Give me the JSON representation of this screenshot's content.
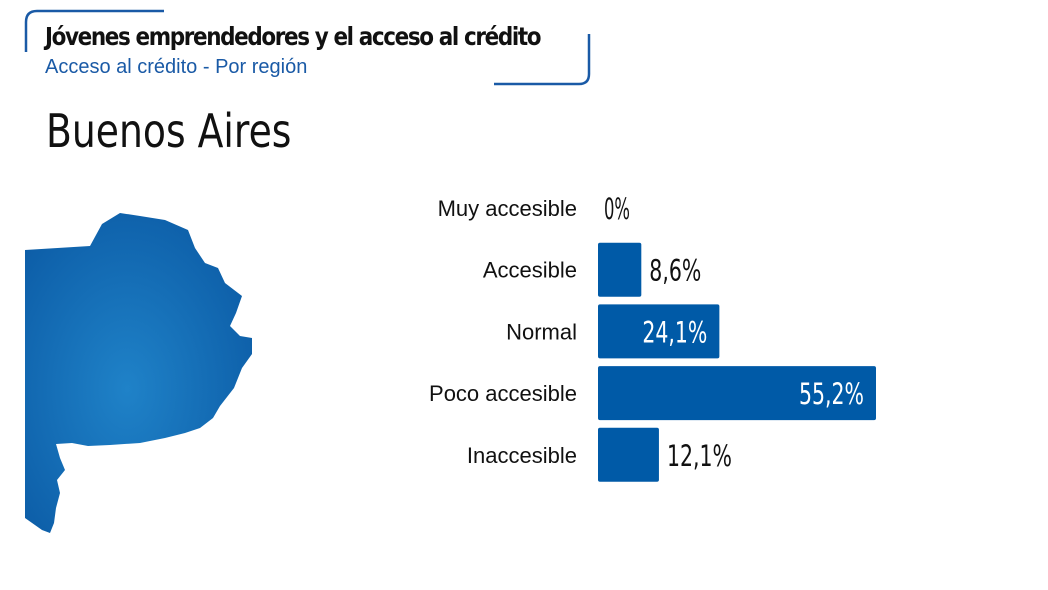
{
  "header": {
    "title": "Jóvenes emprendedores y el acceso al crédito",
    "subtitle": "Acceso al crédito - Por región"
  },
  "region": {
    "name": "Buenos Aires",
    "map_icon": "buenos-aires-province-map"
  },
  "colors": {
    "bar": "#005aa7",
    "accent": "#1a5aa6",
    "map_light": "#1f82c8",
    "map_dark": "#0c5ca6"
  },
  "chart_data": {
    "type": "bar",
    "orientation": "horizontal",
    "categories": [
      "Muy accesible",
      "Accesible",
      "Normal",
      "Poco accesible",
      "Inaccesible"
    ],
    "values": [
      0,
      8.6,
      24.1,
      55.2,
      12.1
    ],
    "value_labels": [
      "0%",
      "8,6%",
      "24,1%",
      "55,2%",
      "12,1%"
    ],
    "unit": "%",
    "xlim": [
      0,
      55.2
    ]
  }
}
